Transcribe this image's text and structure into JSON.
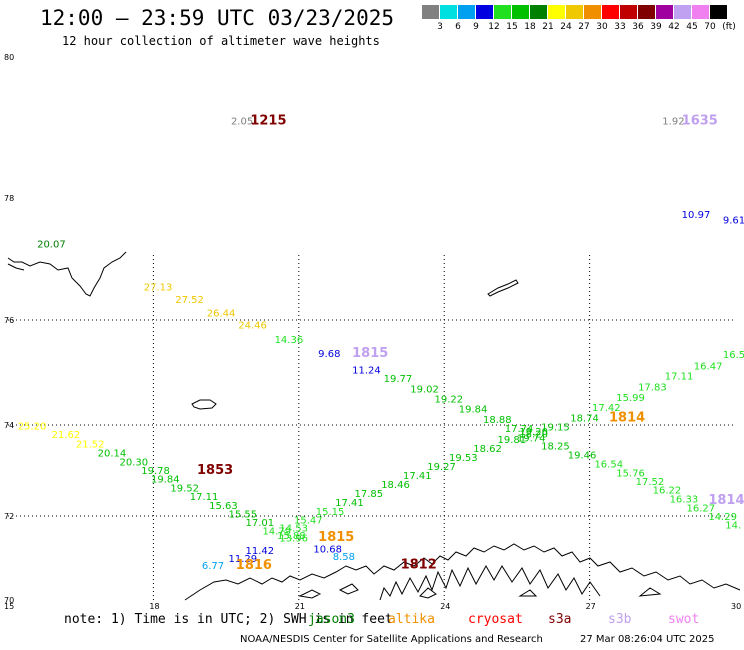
{
  "header": {
    "title": "12:00 – 23:59 UTC 03/23/2025",
    "subtitle": "12 hour collection of altimeter wave heights"
  },
  "legend": {
    "unit": "(ft)",
    "bins": [
      {
        "label": "3",
        "color": "#808080"
      },
      {
        "label": "6",
        "color": "#00e0e0"
      },
      {
        "label": "9",
        "color": "#00a0f0"
      },
      {
        "label": "12",
        "color": "#0000e0"
      },
      {
        "label": "15",
        "color": "#20e020"
      },
      {
        "label": "18",
        "color": "#00c000"
      },
      {
        "label": "21",
        "color": "#008000"
      },
      {
        "label": "24",
        "color": "#ffff00"
      },
      {
        "label": "27",
        "color": "#f0c800"
      },
      {
        "label": "30",
        "color": "#f09000"
      },
      {
        "label": "33",
        "color": "#ff0000"
      },
      {
        "label": "36",
        "color": "#c00000"
      },
      {
        "label": "39",
        "color": "#800000"
      },
      {
        "label": "42",
        "color": "#a000a0"
      },
      {
        "label": "45",
        "color": "#c0a0f0"
      },
      {
        "label": "70",
        "color": "#f080f0"
      },
      {
        "label": "",
        "color": "#000000"
      }
    ]
  },
  "axes": {
    "lat_labels": [
      "80",
      "78",
      "76",
      "74",
      "72",
      "70"
    ],
    "lon_labels": [
      "15",
      "18",
      "21",
      "24",
      "27",
      "30"
    ]
  },
  "labels": [
    {
      "text": "2.05",
      "color": "#808080",
      "lon": 19.6,
      "lat": 79.04,
      "kind": "value"
    },
    {
      "text": "1215",
      "color": "#800000",
      "lon": 20.0,
      "lat": 79.04,
      "kind": "time"
    },
    {
      "text": "1.92",
      "color": "#808080",
      "lon": 28.5,
      "lat": 79.04,
      "kind": "value"
    },
    {
      "text": "1635",
      "color": "#c0a0f0",
      "lon": 28.9,
      "lat": 79.04,
      "kind": "time"
    },
    {
      "text": "10.97",
      "color": "#0000e0",
      "lon": 28.9,
      "lat": 77.67,
      "kind": "value"
    },
    {
      "text": "9.61",
      "color": "#0000e0",
      "lon": 29.75,
      "lat": 77.58,
      "kind": "value"
    },
    {
      "text": "20.07",
      "color": "#008000",
      "lon": 15.6,
      "lat": 77.19,
      "kind": "value"
    },
    {
      "text": "27.13",
      "color": "#f0c800",
      "lon": 17.8,
      "lat": 76.48,
      "kind": "value"
    },
    {
      "text": "27.52",
      "color": "#f0c800",
      "lon": 18.45,
      "lat": 76.28,
      "kind": "value"
    },
    {
      "text": "26.44",
      "color": "#f0c800",
      "lon": 19.1,
      "lat": 76.06,
      "kind": "value"
    },
    {
      "text": "24.46",
      "color": "#f0c800",
      "lon": 19.75,
      "lat": 75.84,
      "kind": "value"
    },
    {
      "text": "14.36",
      "color": "#20e020",
      "lon": 20.5,
      "lat": 75.56,
      "kind": "value"
    },
    {
      "text": "9.68",
      "color": "#0000e0",
      "lon": 21.4,
      "lat": 75.3,
      "kind": "value"
    },
    {
      "text": "1815",
      "color": "#c0a0f0",
      "lon": 22.1,
      "lat": 75.3,
      "kind": "time"
    },
    {
      "text": "11.24",
      "color": "#0000e0",
      "lon": 22.1,
      "lat": 74.98,
      "kind": "value"
    },
    {
      "text": "19.77",
      "color": "#00c000",
      "lon": 22.75,
      "lat": 74.82,
      "kind": "value"
    },
    {
      "text": "19.02",
      "color": "#00c000",
      "lon": 23.3,
      "lat": 74.62,
      "kind": "value"
    },
    {
      "text": "19.22",
      "color": "#00c000",
      "lon": 23.8,
      "lat": 74.43,
      "kind": "value"
    },
    {
      "text": "19.84",
      "color": "#00c000",
      "lon": 24.3,
      "lat": 74.24,
      "kind": "value"
    },
    {
      "text": "18.88",
      "color": "#00c000",
      "lon": 24.8,
      "lat": 74.04,
      "kind": "value"
    },
    {
      "text": "17.74",
      "color": "#00c000",
      "lon": 25.25,
      "lat": 73.85,
      "kind": "value"
    },
    {
      "text": "18.20",
      "color": "#00c000",
      "lon": 25.55,
      "lat": 73.72,
      "kind": "value"
    },
    {
      "text": "19.74",
      "color": "#00c000",
      "lon": 25.5,
      "lat": 73.64,
      "kind": "value"
    },
    {
      "text": "18.25",
      "color": "#00c000",
      "lon": 26.0,
      "lat": 73.46,
      "kind": "value"
    },
    {
      "text": "19.46",
      "color": "#00c000",
      "lon": 26.55,
      "lat": 73.26,
      "kind": "value"
    },
    {
      "text": "16.54",
      "color": "#20e020",
      "lon": 27.1,
      "lat": 73.07,
      "kind": "value"
    },
    {
      "text": "15.76",
      "color": "#20e020",
      "lon": 27.55,
      "lat": 72.87,
      "kind": "value"
    },
    {
      "text": "17.52",
      "color": "#20e020",
      "lon": 27.95,
      "lat": 72.68,
      "kind": "value"
    },
    {
      "text": "16.22",
      "color": "#20e020",
      "lon": 28.3,
      "lat": 72.49,
      "kind": "value"
    },
    {
      "text": "16.33",
      "color": "#20e020",
      "lon": 28.65,
      "lat": 72.3,
      "kind": "value"
    },
    {
      "text": "1814",
      "color": "#c0a0f0",
      "lon": 29.45,
      "lat": 72.26,
      "kind": "time"
    },
    {
      "text": "16.27",
      "color": "#20e020",
      "lon": 29.0,
      "lat": 72.1,
      "kind": "value"
    },
    {
      "text": "14.29",
      "color": "#20e020",
      "lon": 29.45,
      "lat": 71.91,
      "kind": "value"
    },
    {
      "text": "14.",
      "color": "#20e020",
      "lon": 29.8,
      "lat": 71.7,
      "kind": "value"
    },
    {
      "text": "16.5",
      "color": "#20e020",
      "lon": 29.75,
      "lat": 75.28,
      "kind": "value"
    },
    {
      "text": "16.47",
      "color": "#20e020",
      "lon": 29.15,
      "lat": 75.06,
      "kind": "value"
    },
    {
      "text": "17.11",
      "color": "#20e020",
      "lon": 28.55,
      "lat": 74.87,
      "kind": "value"
    },
    {
      "text": "17.83",
      "color": "#20e020",
      "lon": 28.0,
      "lat": 74.66,
      "kind": "value"
    },
    {
      "text": "15.99",
      "color": "#20e020",
      "lon": 27.55,
      "lat": 74.46,
      "kind": "value"
    },
    {
      "text": "17.42",
      "color": "#20e020",
      "lon": 27.05,
      "lat": 74.27,
      "kind": "value"
    },
    {
      "text": "1814",
      "color": "#f09000",
      "lon": 27.4,
      "lat": 74.07,
      "kind": "time"
    },
    {
      "text": "18.74",
      "color": "#00c000",
      "lon": 26.6,
      "lat": 74.07,
      "kind": "value"
    },
    {
      "text": "19.15",
      "color": "#00c000",
      "lon": 26.0,
      "lat": 73.88,
      "kind": "value"
    },
    {
      "text": "19.20",
      "color": "#00c000",
      "lon": 25.55,
      "lat": 73.78,
      "kind": "value"
    },
    {
      "text": "19.81",
      "color": "#00c000",
      "lon": 25.1,
      "lat": 73.6,
      "kind": "value"
    },
    {
      "text": "18.62",
      "color": "#00c000",
      "lon": 24.6,
      "lat": 73.41,
      "kind": "value"
    },
    {
      "text": "19.53",
      "color": "#00c000",
      "lon": 24.1,
      "lat": 73.21,
      "kind": "value"
    },
    {
      "text": "19.27",
      "color": "#00c000",
      "lon": 23.65,
      "lat": 73.01,
      "kind": "value"
    },
    {
      "text": "17.41",
      "color": "#00c000",
      "lon": 23.15,
      "lat": 72.81,
      "kind": "value"
    },
    {
      "text": "18.46",
      "color": "#00c000",
      "lon": 22.7,
      "lat": 72.62,
      "kind": "value"
    },
    {
      "text": "17.85",
      "color": "#00c000",
      "lon": 22.15,
      "lat": 72.42,
      "kind": "value"
    },
    {
      "text": "17.41",
      "color": "#00c000",
      "lon": 21.75,
      "lat": 72.22,
      "kind": "value"
    },
    {
      "text": "15.15",
      "color": "#20e020",
      "lon": 21.35,
      "lat": 72.02,
      "kind": "value"
    },
    {
      "text": "15.47",
      "color": "#20e020",
      "lon": 20.9,
      "lat": 71.82,
      "kind": "value"
    },
    {
      "text": "14.53",
      "color": "#20e020",
      "lon": 20.6,
      "lat": 71.63,
      "kind": "value"
    },
    {
      "text": "15.88",
      "color": "#20e020",
      "lon": 20.55,
      "lat": 71.45,
      "kind": "value"
    },
    {
      "text": "1815",
      "color": "#f09000",
      "lon": 21.4,
      "lat": 71.4,
      "kind": "time"
    },
    {
      "text": "10.68",
      "color": "#0000e0",
      "lon": 21.3,
      "lat": 71.13,
      "kind": "value"
    },
    {
      "text": "8.58",
      "color": "#00a0f0",
      "lon": 21.7,
      "lat": 70.95,
      "kind": "value"
    },
    {
      "text": "1812",
      "color": "#800000",
      "lon": 23.1,
      "lat": 70.75,
      "kind": "time"
    },
    {
      "text": "25.20",
      "color": "#ffff00",
      "lon": 15.2,
      "lat": 73.9,
      "kind": "value"
    },
    {
      "text": "21.62",
      "color": "#ffff00",
      "lon": 15.9,
      "lat": 73.71,
      "kind": "value"
    },
    {
      "text": "21.52",
      "color": "#ffff00",
      "lon": 16.4,
      "lat": 73.51,
      "kind": "value"
    },
    {
      "text": "20.14",
      "color": "#00c000",
      "lon": 16.85,
      "lat": 73.31,
      "kind": "value"
    },
    {
      "text": "20.30",
      "color": "#00c000",
      "lon": 17.3,
      "lat": 73.11,
      "kind": "value"
    },
    {
      "text": "19.78",
      "color": "#00c000",
      "lon": 17.75,
      "lat": 72.92,
      "kind": "value"
    },
    {
      "text": "1853",
      "color": "#800000",
      "lon": 18.9,
      "lat": 72.92,
      "kind": "time"
    },
    {
      "text": "19.84",
      "color": "#00c000",
      "lon": 17.95,
      "lat": 72.74,
      "kind": "value"
    },
    {
      "text": "19.52",
      "color": "#00c000",
      "lon": 18.35,
      "lat": 72.54,
      "kind": "value"
    },
    {
      "text": "17.11",
      "color": "#00c000",
      "lon": 18.75,
      "lat": 72.35,
      "kind": "value"
    },
    {
      "text": "15.63",
      "color": "#00c000",
      "lon": 19.15,
      "lat": 72.15,
      "kind": "value"
    },
    {
      "text": "15.55",
      "color": "#00c000",
      "lon": 19.55,
      "lat": 71.96,
      "kind": "value"
    },
    {
      "text": "17.01",
      "color": "#00c000",
      "lon": 19.9,
      "lat": 71.76,
      "kind": "value"
    },
    {
      "text": "14.79",
      "color": "#20e020",
      "lon": 20.25,
      "lat": 71.56,
      "kind": "value"
    },
    {
      "text": "13.96",
      "color": "#20e020",
      "lon": 20.6,
      "lat": 71.39,
      "kind": "value"
    },
    {
      "text": "11.42",
      "color": "#0000e0",
      "lon": 19.9,
      "lat": 71.09,
      "kind": "value"
    },
    {
      "text": "11.29",
      "color": "#0000e0",
      "lon": 19.55,
      "lat": 70.9,
      "kind": "value"
    },
    {
      "text": "6.77",
      "color": "#00a0f0",
      "lon": 19.0,
      "lat": 70.74,
      "kind": "value"
    },
    {
      "text": "1816",
      "color": "#f09000",
      "lon": 19.7,
      "lat": 70.74,
      "kind": "time"
    }
  ],
  "note": {
    "text": "note: 1) Time is in UTC; 2) SWH is in feet",
    "satellites": [
      {
        "name": "jason3",
        "color": "#008000"
      },
      {
        "name": "altika",
        "color": "#f09000"
      },
      {
        "name": "cryosat",
        "color": "#ff0000"
      },
      {
        "name": "s3a",
        "color": "#800000"
      },
      {
        "name": "s3b",
        "color": "#c0a0f0"
      },
      {
        "name": "swot",
        "color": "#f080f0"
      }
    ]
  },
  "footer": {
    "left": "NOAA/NESDIS Center for Satellite Applications and Research",
    "right": "27 Mar 08:26:04 UTC 2025"
  }
}
